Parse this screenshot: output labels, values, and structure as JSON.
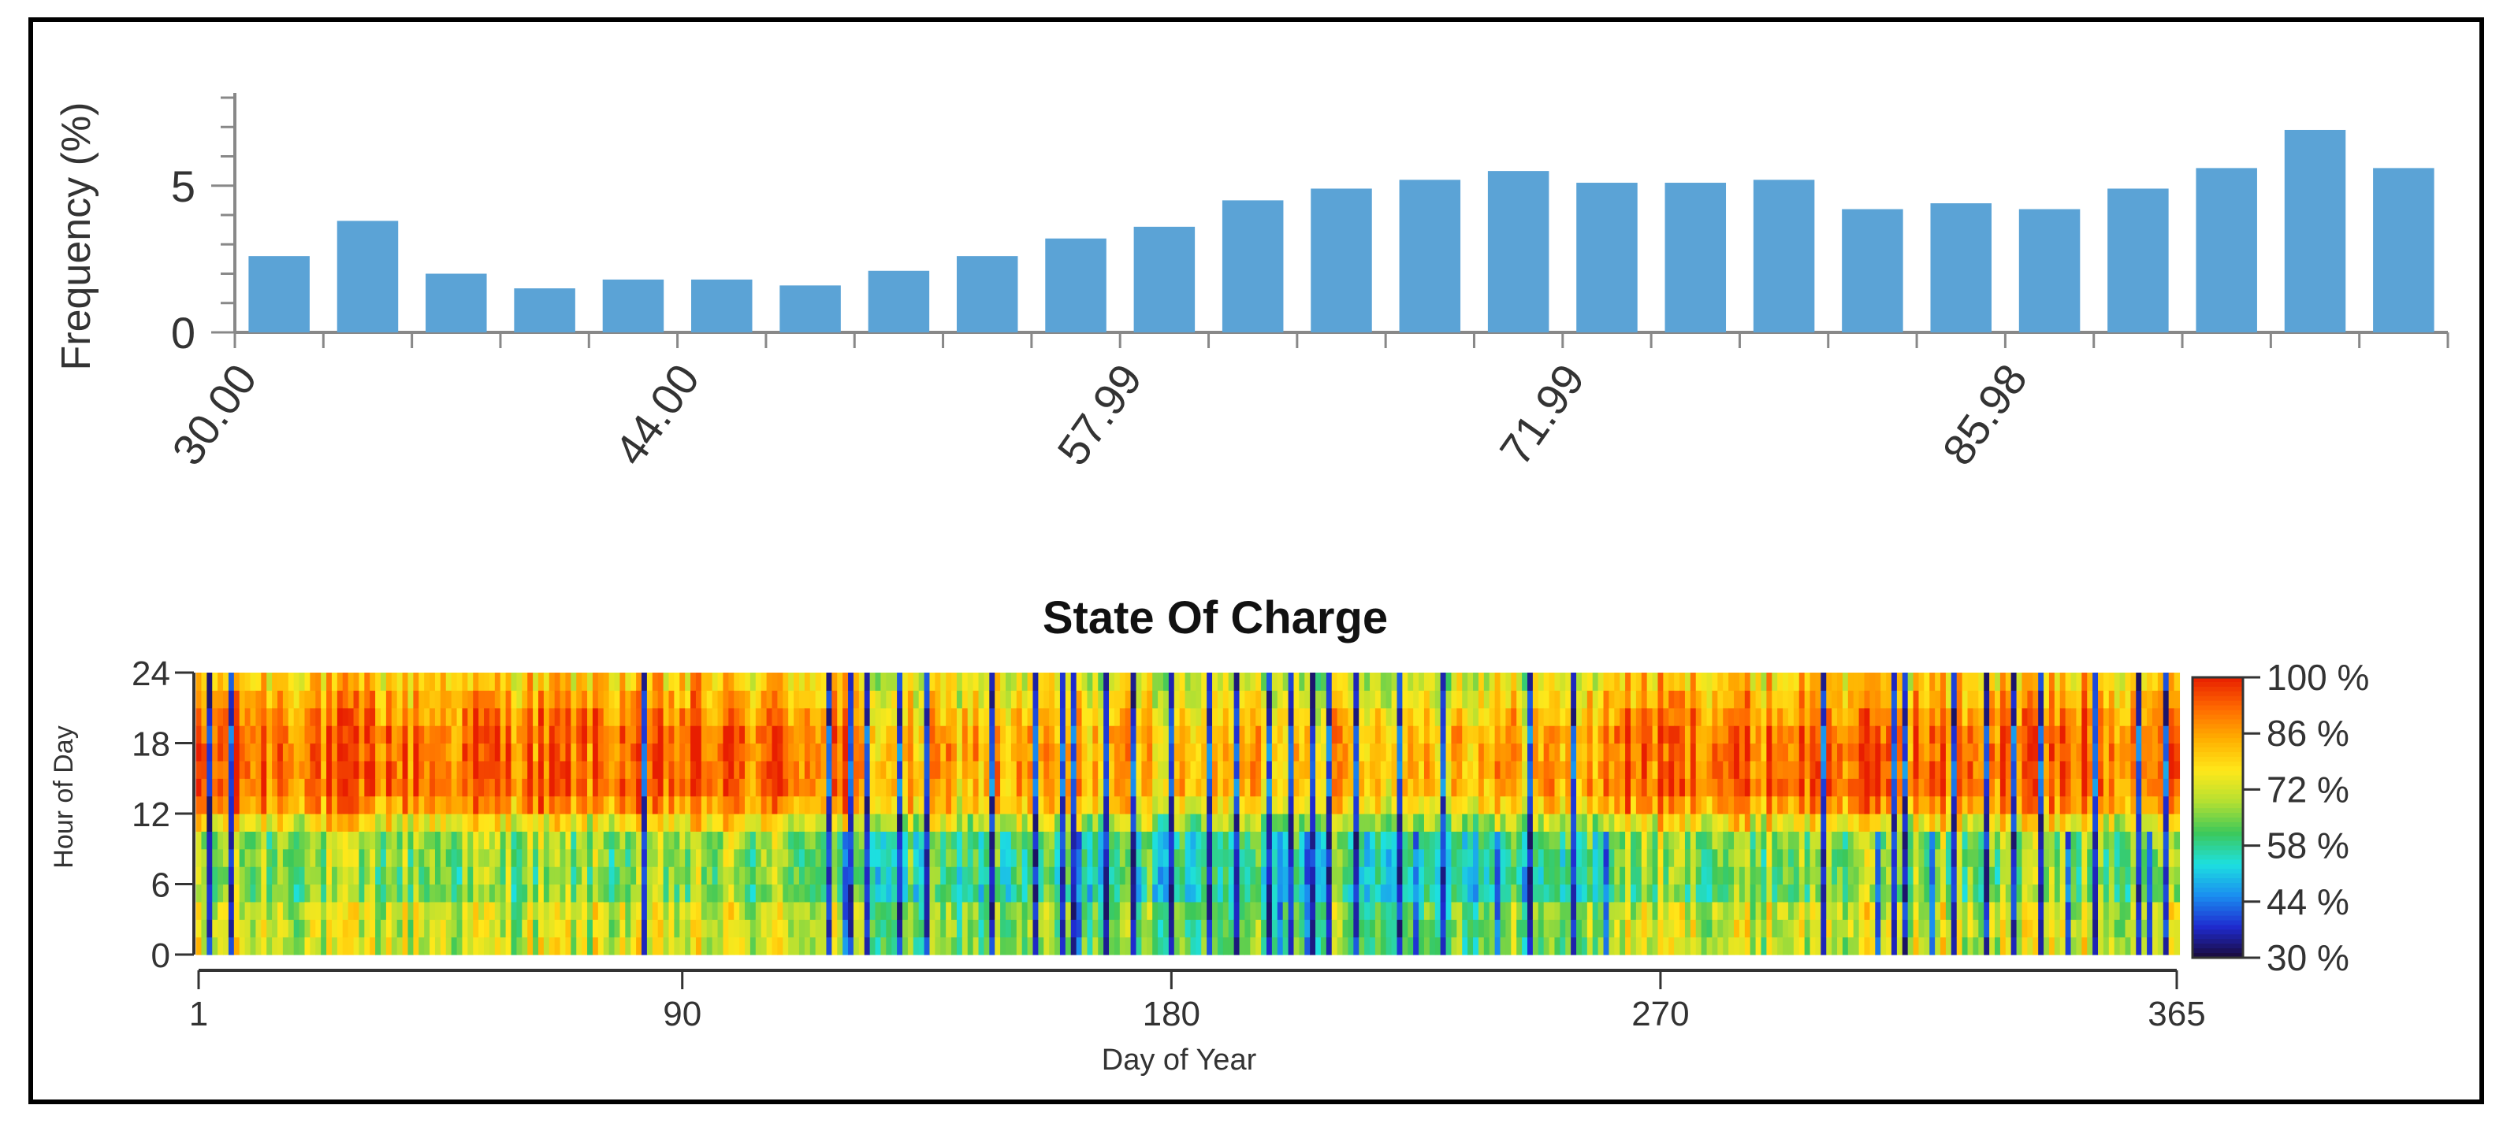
{
  "chart_data": [
    {
      "type": "bar",
      "ylabel": "Frequency (%)",
      "xlabel": "",
      "ylim": [
        0,
        8
      ],
      "y_ticks": [
        {
          "value": 0,
          "label": "0"
        },
        {
          "value": 5,
          "label": "5"
        }
      ],
      "x_tick_labels": [
        "30.00",
        "44.00",
        "57.99",
        "71.99",
        "85.98"
      ],
      "values": [
        2.6,
        3.8,
        2.0,
        1.5,
        1.8,
        1.8,
        1.6,
        2.1,
        2.6,
        3.2,
        3.6,
        4.5,
        4.9,
        5.2,
        5.5,
        5.1,
        5.1,
        5.2,
        4.2,
        4.4,
        4.2,
        4.9,
        5.6,
        6.9,
        5.6
      ],
      "color": "#5ba3d6"
    },
    {
      "type": "heatmap",
      "title": "State Of Charge",
      "xlabel": "Day of Year",
      "ylabel": "Hour of Day",
      "x_range": [
        1,
        365
      ],
      "y_range": [
        0,
        24
      ],
      "x_ticks": [
        1,
        90,
        180,
        270,
        365
      ],
      "y_ticks": [
        0,
        6,
        12,
        18,
        24
      ],
      "x_tick_labels": [
        "1",
        "90",
        "180",
        "270",
        "365"
      ],
      "y_tick_labels": [
        "0",
        "6",
        "12",
        "18",
        "24"
      ],
      "value_range": [
        30,
        100
      ],
      "colorbar_labels": [
        "100 %",
        "86 %",
        "72 %",
        "58 %",
        "44 %",
        "30 %"
      ],
      "colorbar_values": [
        100,
        86,
        72,
        58,
        44,
        30
      ],
      "colormap": [
        "#1a0a3a",
        "#1f2bd0",
        "#1a8ff0",
        "#1de0e0",
        "#3cc85a",
        "#b4e032",
        "#ffe81a",
        "#ffb000",
        "#ff6a00",
        "#e81e00"
      ],
      "low_days": [
        3,
        7,
        83,
        117,
        121,
        124,
        130,
        135,
        147,
        155,
        160,
        162,
        168,
        173,
        180,
        187,
        192,
        198,
        202,
        206,
        209,
        214,
        222,
        230,
        246,
        254,
        300,
        313,
        315,
        324,
        330,
        335,
        340,
        350,
        358,
        363
      ],
      "night_drain_days": [
        120,
        163,
        200,
        205,
        225,
        240,
        260,
        310,
        320,
        345,
        360
      ]
    }
  ]
}
